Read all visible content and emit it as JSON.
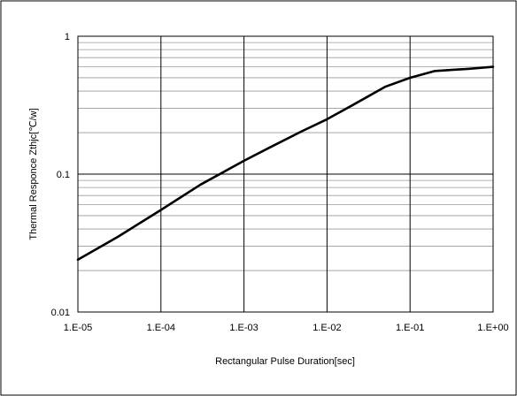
{
  "chart_data": {
    "type": "line",
    "title": "",
    "xlabel": "Rectangular Pulse Duration[sec]",
    "ylabel": "Thermal Responce Zthjc[℃/w]",
    "x_scale": "log",
    "y_scale": "log",
    "xlim": [
      1e-05,
      1
    ],
    "ylim": [
      0.01,
      1
    ],
    "x_tick_values": [
      1e-05,
      0.0001,
      0.001,
      0.01,
      0.1,
      1
    ],
    "x_tick_labels": [
      "1.E-05",
      "1.E-04",
      "1.E-03",
      "1.E-02",
      "1.E-01",
      "1.E+00"
    ],
    "y_tick_values": [
      0.01,
      0.1,
      1
    ],
    "y_tick_labels": [
      "0.01",
      "0.1",
      "1"
    ],
    "grid": true,
    "legend": "none",
    "series": [
      {
        "color": "#000000",
        "x": [
          1e-05,
          3e-05,
          0.0001,
          0.0003,
          0.001,
          0.002,
          0.005,
          0.01,
          0.02,
          0.05,
          0.1,
          0.2,
          0.5,
          1
        ],
        "y": [
          0.024,
          0.035,
          0.055,
          0.084,
          0.125,
          0.155,
          0.205,
          0.25,
          0.315,
          0.43,
          0.5,
          0.56,
          0.58,
          0.6
        ]
      }
    ]
  }
}
